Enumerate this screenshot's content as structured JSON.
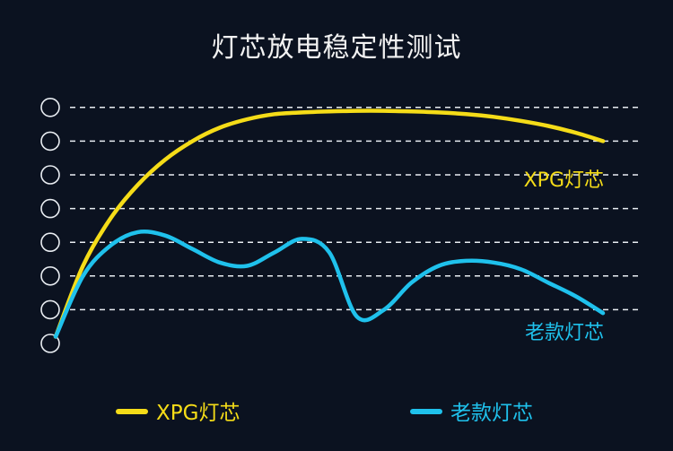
{
  "chart_data": {
    "type": "line",
    "title": "灯芯放电稳定性测试",
    "xlabel": "",
    "ylabel": "",
    "grid": true,
    "y_ticks": [
      "",
      "",
      "",
      "",
      "",
      "",
      "",
      ""
    ],
    "legend_position": "bottom",
    "x": [
      0,
      0.5,
      1,
      1.5,
      2,
      2.5,
      3,
      3.5,
      4,
      4.5,
      5,
      5.5,
      6,
      6.5,
      7,
      7.5,
      8,
      8.5,
      9,
      9.5,
      10
    ],
    "series": [
      {
        "name": "XPG灯芯",
        "color": "#f5dc18",
        "end_label": "XPG灯芯",
        "values": [
          0.2,
          2.3,
          3.7,
          4.7,
          5.45,
          6.0,
          6.4,
          6.65,
          6.8,
          6.85,
          6.88,
          6.9,
          6.9,
          6.88,
          6.85,
          6.8,
          6.72,
          6.6,
          6.45,
          6.25,
          6.0
        ]
      },
      {
        "name": "老款灯芯",
        "color": "#1fc1ec",
        "end_label": "老款灯芯",
        "values": [
          0.2,
          2.0,
          2.9,
          3.3,
          3.2,
          2.8,
          2.4,
          2.3,
          2.7,
          3.1,
          2.7,
          0.8,
          1.0,
          1.8,
          2.3,
          2.45,
          2.4,
          2.2,
          1.8,
          1.4,
          0.9
        ]
      }
    ]
  },
  "legend": [
    {
      "label": "XPG灯芯",
      "color": "#f5dc18"
    },
    {
      "label": "老款灯芯",
      "color": "#1fc1ec"
    }
  ]
}
